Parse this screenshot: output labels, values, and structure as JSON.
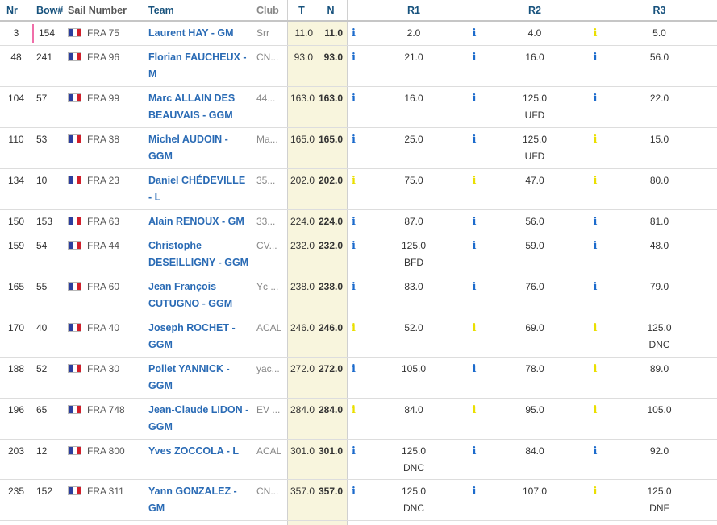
{
  "colors": {
    "header_text": "#17527d",
    "team_link": "#2a6bb5",
    "score_band_bg": "#f8f5dd",
    "info_icon_blue": "#1c6bcc",
    "info_icon_yellow": "#eadf00",
    "highlight_marker_pink": "#f06ea9",
    "flag_blue": "#2b3e9e",
    "flag_red": "#d01f2b"
  },
  "table": {
    "columns": {
      "nr": "Nr",
      "bow": "Bow#",
      "sail": "Sail Number",
      "team": "Team",
      "club": "Club",
      "t": "T",
      "n": "N",
      "r1": "R1",
      "r2": "R2",
      "r3": "R3"
    },
    "flag_name": "france-flag",
    "rows": [
      {
        "nr": "3",
        "highlight": true,
        "bow": "154",
        "sail": "FRA 75",
        "team": "Laurent HAY - GM",
        "club": "Srr",
        "t": "11.0",
        "n": "11.0",
        "n_icon": "blue",
        "races": [
          {
            "icon": "blue",
            "score": "2.0"
          },
          {
            "icon": "blue",
            "score": "4.0"
          },
          {
            "icon": "yellow",
            "score": "5.0"
          }
        ]
      },
      {
        "nr": "48",
        "highlight": false,
        "bow": "241",
        "sail": "FRA 96",
        "team": "Florian FAUCHEUX - M",
        "club": "CN...",
        "t": "93.0",
        "n": "93.0",
        "n_icon": "blue",
        "races": [
          {
            "icon": "blue",
            "score": "21.0"
          },
          {
            "icon": "blue",
            "score": "16.0"
          },
          {
            "icon": "blue",
            "score": "56.0"
          }
        ]
      },
      {
        "nr": "104",
        "highlight": false,
        "bow": "57",
        "sail": "FRA 99",
        "team": "Marc ALLAIN DES BEAUVAIS - GGM",
        "club": "44...",
        "t": "163.0",
        "n": "163.0",
        "n_icon": "blue",
        "races": [
          {
            "icon": "blue",
            "score": "16.0"
          },
          {
            "icon": "blue",
            "score": "125.0",
            "code": "UFD"
          },
          {
            "icon": "blue",
            "score": "22.0"
          }
        ]
      },
      {
        "nr": "110",
        "highlight": false,
        "bow": "53",
        "sail": "FRA 38",
        "team": "Michel AUDOIN - GGM",
        "club": "Ma...",
        "t": "165.0",
        "n": "165.0",
        "n_icon": "blue",
        "races": [
          {
            "icon": "blue",
            "score": "25.0"
          },
          {
            "icon": "blue",
            "score": "125.0",
            "code": "UFD"
          },
          {
            "icon": "yellow",
            "score": "15.0"
          }
        ]
      },
      {
        "nr": "134",
        "highlight": false,
        "bow": "10",
        "sail": "FRA 23",
        "team": "Daniel CHÉDEVILLE - L",
        "club": "35...",
        "t": "202.0",
        "n": "202.0",
        "n_icon": "yellow",
        "races": [
          {
            "icon": "yellow",
            "score": "75.0"
          },
          {
            "icon": "yellow",
            "score": "47.0"
          },
          {
            "icon": "yellow",
            "score": "80.0"
          }
        ]
      },
      {
        "nr": "150",
        "highlight": false,
        "bow": "153",
        "sail": "FRA 63",
        "team": "Alain RENOUX - GM",
        "club": "33...",
        "t": "224.0",
        "n": "224.0",
        "n_icon": "blue",
        "races": [
          {
            "icon": "blue",
            "score": "87.0"
          },
          {
            "icon": "blue",
            "score": "56.0"
          },
          {
            "icon": "blue",
            "score": "81.0"
          }
        ]
      },
      {
        "nr": "159",
        "highlight": false,
        "bow": "54",
        "sail": "FRA 44",
        "team": "Christophe DESEILLIGNY - GGM",
        "club": "CV...",
        "t": "232.0",
        "n": "232.0",
        "n_icon": "blue",
        "races": [
          {
            "icon": "blue",
            "score": "125.0",
            "code": "BFD"
          },
          {
            "icon": "blue",
            "score": "59.0"
          },
          {
            "icon": "blue",
            "score": "48.0"
          }
        ]
      },
      {
        "nr": "165",
        "highlight": false,
        "bow": "55",
        "sail": "FRA 60",
        "team": "Jean François CUTUGNO - GGM",
        "club": "Yc ...",
        "t": "238.0",
        "n": "238.0",
        "n_icon": "blue",
        "races": [
          {
            "icon": "blue",
            "score": "83.0"
          },
          {
            "icon": "blue",
            "score": "76.0"
          },
          {
            "icon": "blue",
            "score": "79.0"
          }
        ]
      },
      {
        "nr": "170",
        "highlight": false,
        "bow": "40",
        "sail": "FRA 40",
        "team": "Joseph ROCHET - GGM",
        "club": "ACAL",
        "t": "246.0",
        "n": "246.0",
        "n_icon": "yellow",
        "races": [
          {
            "icon": "yellow",
            "score": "52.0"
          },
          {
            "icon": "yellow",
            "score": "69.0"
          },
          {
            "icon": "yellow",
            "score": "125.0",
            "code": "DNC"
          }
        ]
      },
      {
        "nr": "188",
        "highlight": false,
        "bow": "52",
        "sail": "FRA 30",
        "team": "Pollet YANNICK - GGM",
        "club": "yac...",
        "t": "272.0",
        "n": "272.0",
        "n_icon": "blue",
        "races": [
          {
            "icon": "blue",
            "score": "105.0"
          },
          {
            "icon": "blue",
            "score": "78.0"
          },
          {
            "icon": "yellow",
            "score": "89.0"
          }
        ]
      },
      {
        "nr": "196",
        "highlight": false,
        "bow": "65",
        "sail": "FRA 748",
        "team": "Jean-Claude LIDON - GGM",
        "club": "EV ...",
        "t": "284.0",
        "n": "284.0",
        "n_icon": "yellow",
        "races": [
          {
            "icon": "yellow",
            "score": "84.0"
          },
          {
            "icon": "yellow",
            "score": "95.0"
          },
          {
            "icon": "yellow",
            "score": "105.0"
          }
        ]
      },
      {
        "nr": "203",
        "highlight": false,
        "bow": "12",
        "sail": "FRA 800",
        "team": "Yves ZOCCOLA - L",
        "club": "ACAL",
        "t": "301.0",
        "n": "301.0",
        "n_icon": "blue",
        "races": [
          {
            "icon": "blue",
            "score": "125.0",
            "code": "DNC"
          },
          {
            "icon": "blue",
            "score": "84.0"
          },
          {
            "icon": "blue",
            "score": "92.0"
          }
        ]
      },
      {
        "nr": "235",
        "highlight": false,
        "bow": "152",
        "sail": "FRA 311",
        "team": "Yann GONZALEZ - GM",
        "club": "CN...",
        "t": "357.0",
        "n": "357.0",
        "n_icon": "blue",
        "races": [
          {
            "icon": "blue",
            "score": "125.0",
            "code": "DNC"
          },
          {
            "icon": "blue",
            "score": "107.0"
          },
          {
            "icon": "yellow",
            "score": "125.0",
            "code": "DNF"
          }
        ]
      }
    ]
  }
}
